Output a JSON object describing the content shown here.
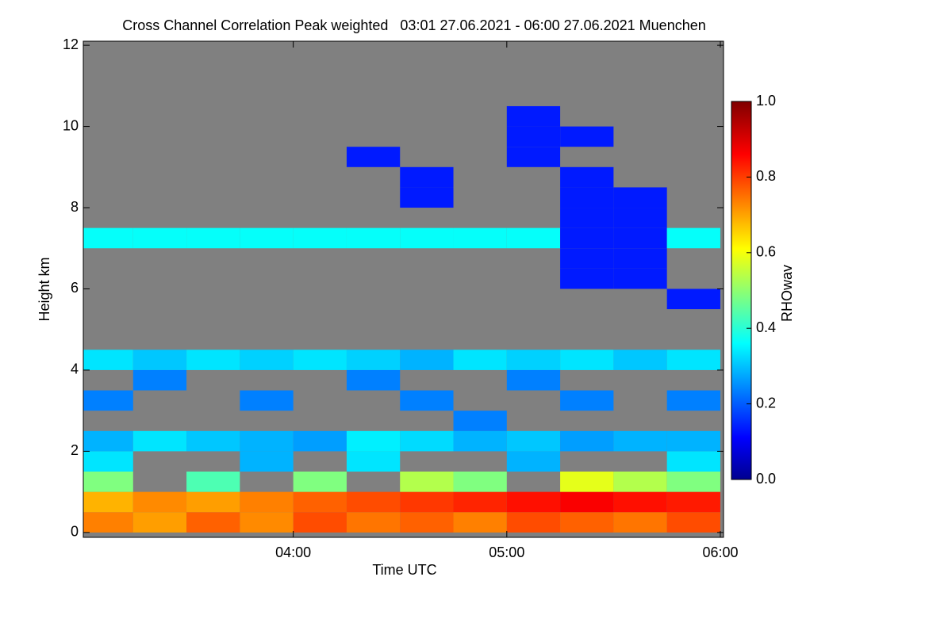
{
  "chart_data": {
    "type": "heatmap",
    "title": "Cross Channel Correlation Peak weighted   03:01 27.06.2021 - 06:00 27.06.2021 Muenchen",
    "x_label": "Time UTC",
    "y_label": "Height km",
    "colorbar_label": "RHOwav",
    "x": [
      3.125,
      3.375,
      3.625,
      3.875,
      4.125,
      4.375,
      4.625,
      4.875,
      5.125,
      5.375,
      5.625,
      5.875
    ],
    "y": [
      0.25,
      0.75,
      1.25,
      1.75,
      2.25,
      2.75,
      3.25,
      3.75,
      4.25,
      4.75,
      5.25,
      5.75,
      6.25,
      6.75,
      7.25,
      7.75,
      8.25,
      8.75,
      9.25,
      9.75,
      10.25,
      10.75,
      11.25,
      11.75
    ],
    "z": [
      [
        0.75,
        0.72,
        0.78,
        0.74,
        0.8,
        0.76,
        0.78,
        0.75,
        0.8,
        0.78,
        0.76,
        0.8
      ],
      [
        0.7,
        0.74,
        0.72,
        0.75,
        0.78,
        0.8,
        0.82,
        0.84,
        0.86,
        0.88,
        0.86,
        0.85
      ],
      [
        0.5,
        null,
        0.45,
        null,
        0.5,
        null,
        0.55,
        0.5,
        null,
        0.6,
        0.55,
        0.5
      ],
      [
        0.35,
        null,
        null,
        0.3,
        null,
        0.35,
        null,
        null,
        0.3,
        null,
        null,
        0.35
      ],
      [
        0.3,
        0.35,
        0.32,
        0.3,
        0.28,
        0.36,
        0.34,
        0.3,
        0.32,
        0.28,
        0.3,
        0.3
      ],
      [
        null,
        null,
        null,
        null,
        null,
        null,
        null,
        0.25,
        null,
        null,
        null,
        null
      ],
      [
        0.25,
        null,
        null,
        0.25,
        null,
        null,
        0.25,
        null,
        null,
        0.25,
        null,
        0.25
      ],
      [
        null,
        0.25,
        null,
        null,
        null,
        0.25,
        null,
        null,
        0.25,
        null,
        null,
        null
      ],
      [
        0.35,
        0.32,
        0.35,
        0.33,
        0.35,
        0.33,
        0.3,
        0.35,
        0.33,
        0.35,
        0.32,
        0.35
      ],
      [
        null,
        null,
        null,
        null,
        null,
        null,
        null,
        null,
        null,
        null,
        null,
        null
      ],
      [
        null,
        null,
        null,
        null,
        null,
        null,
        null,
        null,
        null,
        null,
        null,
        null
      ],
      [
        null,
        null,
        null,
        null,
        null,
        null,
        null,
        null,
        null,
        null,
        null,
        0.15
      ],
      [
        null,
        null,
        null,
        null,
        null,
        null,
        null,
        null,
        null,
        0.15,
        0.15,
        null
      ],
      [
        null,
        null,
        null,
        null,
        null,
        null,
        null,
        null,
        null,
        0.15,
        0.15,
        null
      ],
      [
        0.38,
        0.38,
        0.38,
        0.38,
        0.38,
        0.38,
        0.38,
        0.38,
        0.38,
        0.15,
        0.15,
        0.38
      ],
      [
        null,
        null,
        null,
        null,
        null,
        null,
        null,
        null,
        null,
        0.15,
        0.15,
        null
      ],
      [
        null,
        null,
        null,
        null,
        null,
        null,
        0.15,
        null,
        null,
        0.15,
        0.15,
        null
      ],
      [
        null,
        null,
        null,
        null,
        null,
        null,
        0.15,
        null,
        null,
        0.15,
        null,
        null
      ],
      [
        null,
        null,
        null,
        null,
        null,
        0.15,
        null,
        null,
        0.15,
        null,
        null,
        null
      ],
      [
        null,
        null,
        null,
        null,
        null,
        null,
        null,
        null,
        0.15,
        0.15,
        null,
        null
      ],
      [
        null,
        null,
        null,
        null,
        null,
        null,
        null,
        null,
        0.15,
        null,
        null,
        null
      ],
      [
        null,
        null,
        null,
        null,
        null,
        null,
        null,
        null,
        null,
        null,
        null,
        null
      ],
      [
        null,
        null,
        null,
        null,
        null,
        null,
        null,
        null,
        null,
        null,
        null,
        null
      ],
      [
        null,
        null,
        null,
        null,
        null,
        null,
        null,
        null,
        null,
        null,
        null,
        null
      ]
    ],
    "xlim": [
      3.0167,
      6.015
    ],
    "xticks": [
      {
        "value": 4,
        "label": "04:00"
      },
      {
        "value": 5,
        "label": "05:00"
      },
      {
        "value": 6,
        "label": "06:00"
      }
    ],
    "ylim": [
      -0.12,
      12.1
    ],
    "yticks": [
      0,
      2,
      4,
      6,
      8,
      10,
      12
    ],
    "zlim": [
      0,
      1
    ],
    "zticks": [
      {
        "value": 0,
        "label": "0.0"
      },
      0.2,
      0.4,
      0.6,
      0.8,
      {
        "value": 1,
        "label": "1.0"
      }
    ],
    "missing_color": "#808080",
    "colormap": "jet"
  }
}
